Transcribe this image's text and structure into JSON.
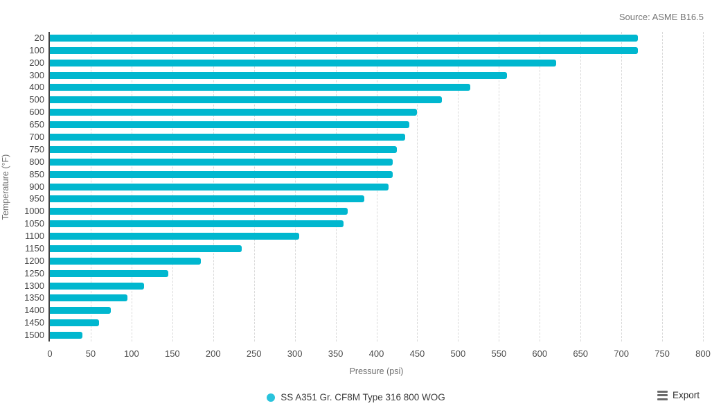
{
  "source_label": "Source: ASME B16.5",
  "legend": {
    "label": "SS A351 Gr. CF8M Type 316 800 WOG",
    "marker_color": "#29c3dc"
  },
  "export": {
    "label": "Export"
  },
  "colors": {
    "bar": "#00b7cf",
    "axis_line": "#404040",
    "gridline": "#d9d9d9",
    "tick_label": "#4a4a4a",
    "axis_title": "#6e6e6e",
    "source_text": "#757575"
  },
  "chart_data": {
    "type": "bar",
    "orientation": "horizontal",
    "title": "",
    "xlabel": "Pressure (psi)",
    "ylabel": "Temperature (°F)",
    "xlim": [
      0,
      800
    ],
    "x_tick_step": 50,
    "grid": "vertical-dashed",
    "legend_position": "bottom-center",
    "source": "Source: ASME B16.5",
    "categories": [
      "20",
      "100",
      "200",
      "300",
      "400",
      "500",
      "600",
      "650",
      "700",
      "750",
      "800",
      "850",
      "900",
      "950",
      "1000",
      "1050",
      "1100",
      "1150",
      "1200",
      "1250",
      "1300",
      "1350",
      "1400",
      "1450",
      "1500"
    ],
    "series": [
      {
        "name": "SS A351 Gr. CF8M Type 316 800 WOG",
        "values": [
          720,
          720,
          620,
          560,
          515,
          480,
          450,
          440,
          435,
          425,
          420,
          420,
          415,
          385,
          365,
          360,
          305,
          235,
          185,
          145,
          115,
          95,
          75,
          60,
          40
        ]
      }
    ]
  }
}
